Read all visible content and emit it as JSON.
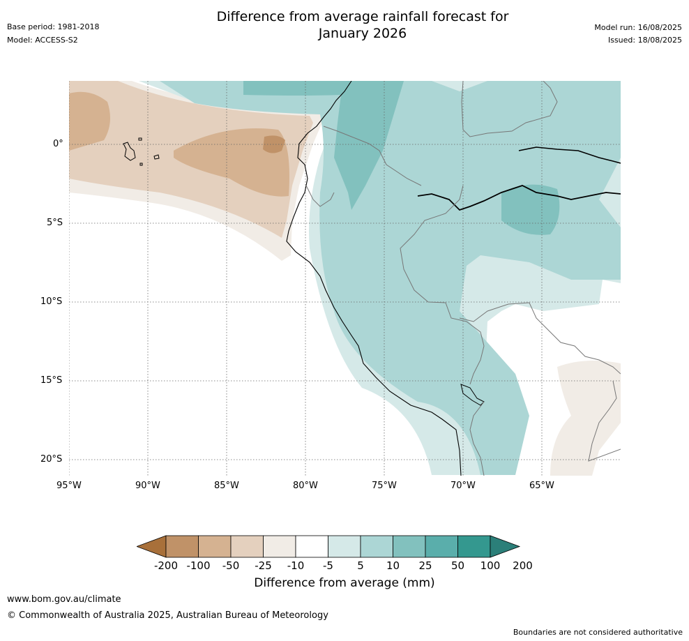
{
  "header": {
    "title_line1": "Difference from average rainfall forecast for",
    "title_line2": "January 2026",
    "base_period": "Base period: 1981-2018",
    "model": "Model: ACCESS-S2",
    "model_run": "Model run: 16/08/2025",
    "issued": "Issued: 18/08/2025"
  },
  "axes": {
    "lat_labels": [
      "0°",
      "5°S",
      "10°S",
      "15°S",
      "20°S"
    ],
    "lon_labels": [
      "95°W",
      "90°W",
      "85°W",
      "80°W",
      "75°W",
      "70°W",
      "65°W"
    ]
  },
  "colorbar": {
    "labels": [
      "-200",
      "-100",
      "-50",
      "-25",
      "-10",
      "-5",
      "5",
      "10",
      "25",
      "50",
      "100",
      "200"
    ],
    "colors": [
      "#a8703a",
      "#c09268",
      "#d5b291",
      "#e4d0be",
      "#f1ece6",
      "#ffffff",
      "#d5e9e8",
      "#acd6d5",
      "#82c1be",
      "#5aaeab",
      "#34988f",
      "#2b7f79"
    ],
    "title": "Difference from average (mm)"
  },
  "footer": {
    "url": "www.bom.gov.au/climate",
    "copyright": "© Commonwealth of Australia 2025, Australian Bureau of Meteorology",
    "disclaimer": "Boundaries are not considered authoritative"
  }
}
